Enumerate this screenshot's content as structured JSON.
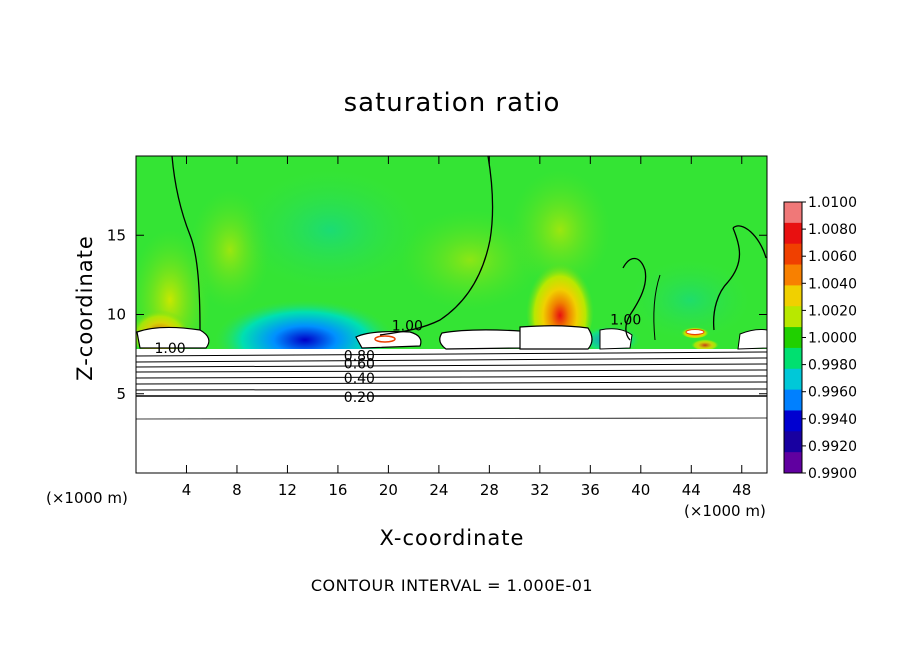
{
  "chart_data": {
    "type": "heatmap",
    "title": "saturation ratio",
    "xlabel": "X-coordinate",
    "ylabel": "Z-coordinate",
    "x_unit_left": "(×1000 m)",
    "x_unit_right": "(×1000 m)",
    "footer": "CONTOUR INTERVAL = 1.000E-01",
    "xlim": [
      0,
      50
    ],
    "ylim": [
      0,
      20
    ],
    "x_ticks": [
      "4",
      "8",
      "12",
      "16",
      "20",
      "24",
      "28",
      "32",
      "36",
      "40",
      "44",
      "48"
    ],
    "y_ticks": [
      "5",
      "10",
      "15"
    ],
    "x_tick_values": [
      4,
      8,
      12,
      16,
      20,
      24,
      28,
      32,
      36,
      40,
      44,
      48
    ],
    "y_tick_values": [
      5,
      10,
      15
    ],
    "colorbar": {
      "labels": [
        "1.0100",
        "1.0080",
        "1.0060",
        "1.0040",
        "1.0020",
        "1.0000",
        "0.9980",
        "0.9960",
        "0.9940",
        "0.9920",
        "0.9900"
      ],
      "colors": [
        "#f07878",
        "#e81010",
        "#f04000",
        "#f88000",
        "#f0d000",
        "#b8e800",
        "#20d000",
        "#00e070",
        "#00c8d8",
        "#0080ff",
        "#0000d0",
        "#1800a0",
        "#6000a0"
      ]
    },
    "contour_labels": [
      {
        "text": "1.00",
        "x": 21.5,
        "z": 9.3
      },
      {
        "text": "1.00",
        "x": 2.7,
        "z": 7.9
      },
      {
        "text": "1.00",
        "x": 38.8,
        "z": 9.7
      },
      {
        "text": "0.80",
        "x": 17.7,
        "z": 7.4
      },
      {
        "text": "0.60",
        "x": 17.7,
        "z": 6.9
      },
      {
        "text": "0.40",
        "x": 17.7,
        "z": 6.0
      },
      {
        "text": "0.20",
        "x": 17.7,
        "z": 4.8
      }
    ],
    "colors": {
      "background_field": "#34e434",
      "subsaturated": "#ffffff",
      "contour": "#000000"
    }
  }
}
